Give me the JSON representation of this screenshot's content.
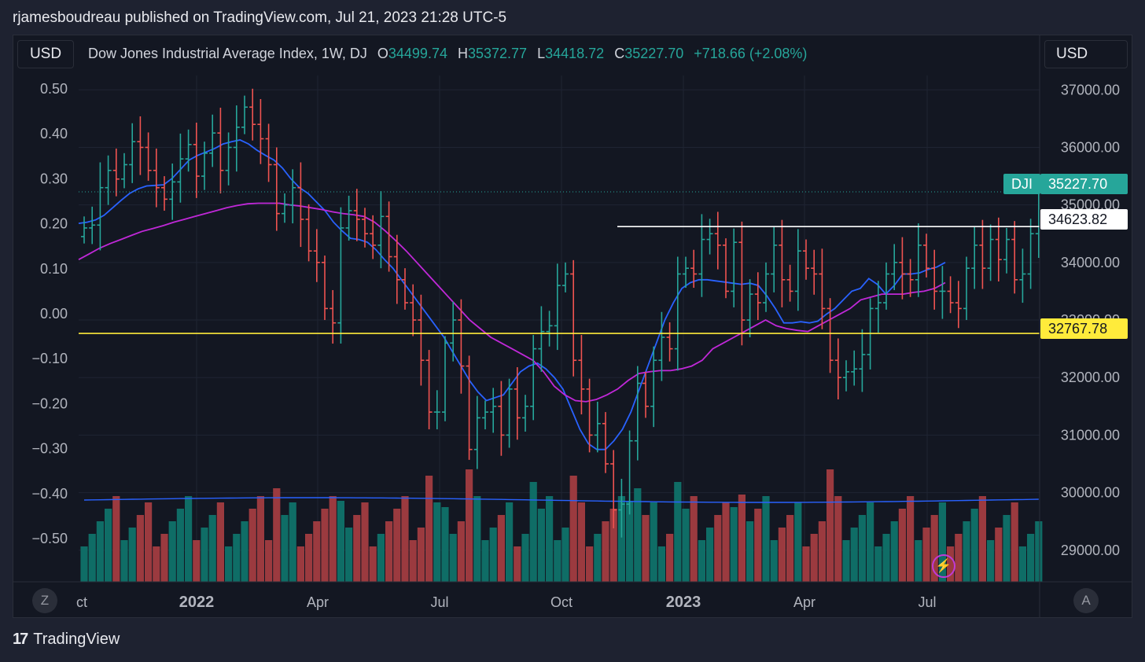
{
  "header": {
    "text": "rjamesboudreau published on TradingView.com, Jul 21, 2023 21:28 UTC-5"
  },
  "currency": {
    "left": "USD",
    "right": "USD"
  },
  "legend": {
    "name": "Dow Jones Industrial Average Index, 1W, DJ",
    "o_label": "O",
    "o_value": "34499.74",
    "h_label": "H",
    "h_value": "35372.77",
    "l_label": "L",
    "l_value": "34418.72",
    "c_label": "C",
    "c_value": "35227.70",
    "change": "+718.66 (+2.08%)"
  },
  "tags": {
    "symbol": "DJI",
    "last_price": "35227.70",
    "resistance": "34623.82",
    "support": "32767.78"
  },
  "buttons": {
    "z": "Z",
    "a": "A",
    "bolt": "⚡"
  },
  "brand": {
    "logo": "17",
    "name": "TradingView"
  },
  "colors": {
    "up": "#26a69a",
    "down": "#ef5350",
    "vol_up": "#0f6d66",
    "vol_down": "#9b3a3f",
    "ma_fast": "#2962ff",
    "ma_slow": "#c028d8",
    "support": "#ffeb3b",
    "resistance": "#ffffff"
  },
  "chart_data": {
    "type": "ohlc",
    "price_axis": {
      "ticks": [
        29000,
        30000,
        31000,
        32000,
        33000,
        34000,
        35000,
        36000,
        37000
      ],
      "tick_labels": [
        "29000.00",
        "30000.00",
        "31000.00",
        "32000.00",
        "33000.00",
        "34000.00",
        "35000.00",
        "36000.00",
        "37000.00"
      ],
      "range": [
        28450,
        37250
      ]
    },
    "left_axis": {
      "ticks": [
        0.5,
        0.4,
        0.3,
        0.2,
        0.1,
        0.0,
        -0.1,
        -0.2,
        -0.3,
        -0.4,
        -0.5
      ],
      "tick_labels": [
        "0.50",
        "0.40",
        "0.30",
        "0.20",
        "0.10",
        "0.00",
        "−0.10",
        "−0.20",
        "−0.30",
        "−0.40",
        "−0.50"
      ]
    },
    "x_axis": {
      "labels": [
        "ct",
        "2022",
        "Apr",
        "Jul",
        "Oct",
        "2023",
        "Apr",
        "Jul"
      ]
    },
    "horizontal_lines": [
      {
        "value": 34623.82,
        "label": "34623.82"
      },
      {
        "value": 32767.78,
        "label": "32767.78"
      }
    ],
    "last_price": 35227.7,
    "closes": [
      34600,
      34650,
      35300,
      35600,
      35450,
      35700,
      36100,
      36000,
      35600,
      35300,
      35100,
      35400,
      35800,
      36050,
      35500,
      35900,
      36250,
      35600,
      36000,
      36350,
      36700,
      36400,
      36150,
      35700,
      34850,
      35000,
      35300,
      34750,
      34200,
      34000,
      33200,
      32950,
      34600,
      34900,
      34750,
      34500,
      34300,
      34800,
      34100,
      33700,
      33300,
      33000,
      32300,
      31400,
      31400,
      32600,
      33000,
      32200,
      30750,
      31300,
      31400,
      31500,
      31000,
      31800,
      31300,
      31500,
      32500,
      32800,
      32900,
      33600,
      33800,
      32300,
      31800,
      31000,
      31200,
      30500,
      29700,
      29800,
      30900,
      31900,
      31500,
      32300,
      32700,
      32500,
      33800,
      33900,
      33800,
      34400,
      34500,
      34300,
      33500,
      34350,
      33000,
      33450,
      33300,
      33800,
      34300,
      33700,
      33500,
      34200,
      33900,
      33800,
      33200,
      32300,
      32000,
      32100,
      32150,
      32400,
      33200,
      33300,
      33800,
      34000,
      33800,
      33700,
      34300,
      33900,
      33500,
      33500,
      33300,
      33200,
      33900,
      34300,
      33900,
      34400,
      34050,
      34400,
      33700,
      33800,
      34500,
      35227.7
    ],
    "sma_fast": [
      34680,
      34700,
      34740,
      34820,
      34950,
      35080,
      35200,
      35280,
      35330,
      35340,
      35350,
      35460,
      35620,
      35780,
      35860,
      35920,
      35980,
      36060,
      36100,
      36130,
      36060,
      35950,
      35860,
      35780,
      35640,
      35450,
      35300,
      35200,
      35050,
      34900,
      34700,
      34550,
      34420,
      34400,
      34350,
      34220,
      34050,
      33900,
      33700,
      33500,
      33300,
      33100,
      32900,
      32700,
      32450,
      32200,
      31950,
      31750,
      31600,
      31650,
      31700,
      31900,
      32100,
      32200,
      32250,
      32150,
      32000,
      31800,
      31450,
      31100,
      30850,
      30750,
      30750,
      30900,
      31100,
      31400,
      31800,
      32200,
      32600,
      33000,
      33300,
      33550,
      33650,
      33700,
      33700,
      33680,
      33660,
      33640,
      33620,
      33640,
      33600,
      33420,
      33200,
      32950,
      32950,
      32970,
      32950,
      32980,
      33100,
      33200,
      33350,
      33500,
      33550,
      33720,
      33620,
      33450,
      33600,
      33800,
      33800,
      33820,
      33880,
      33920,
      34000
    ],
    "sma_slow": [
      34050,
      34150,
      34250,
      34330,
      34400,
      34470,
      34540,
      34590,
      34640,
      34700,
      34750,
      34800,
      34850,
      34900,
      34950,
      34990,
      35020,
      35030,
      35030,
      35030,
      35000,
      34980,
      34950,
      34920,
      34880,
      34850,
      34830,
      34800,
      34700,
      34550,
      34380,
      34200,
      34000,
      33800,
      33600,
      33400,
      33200,
      33000,
      32850,
      32700,
      32600,
      32500,
      32400,
      32300,
      32100,
      31850,
      31700,
      31600,
      31580,
      31620,
      31700,
      31800,
      31950,
      32070,
      32100,
      32120,
      32120,
      32150,
      32200,
      32300,
      32500,
      32600,
      32700,
      32800,
      32900,
      33000,
      32900,
      32850,
      32820,
      32800,
      32900,
      33000,
      33100,
      33200,
      33350,
      33400,
      33450,
      33450,
      33450,
      33480,
      33500,
      33550,
      33650
    ]
  }
}
